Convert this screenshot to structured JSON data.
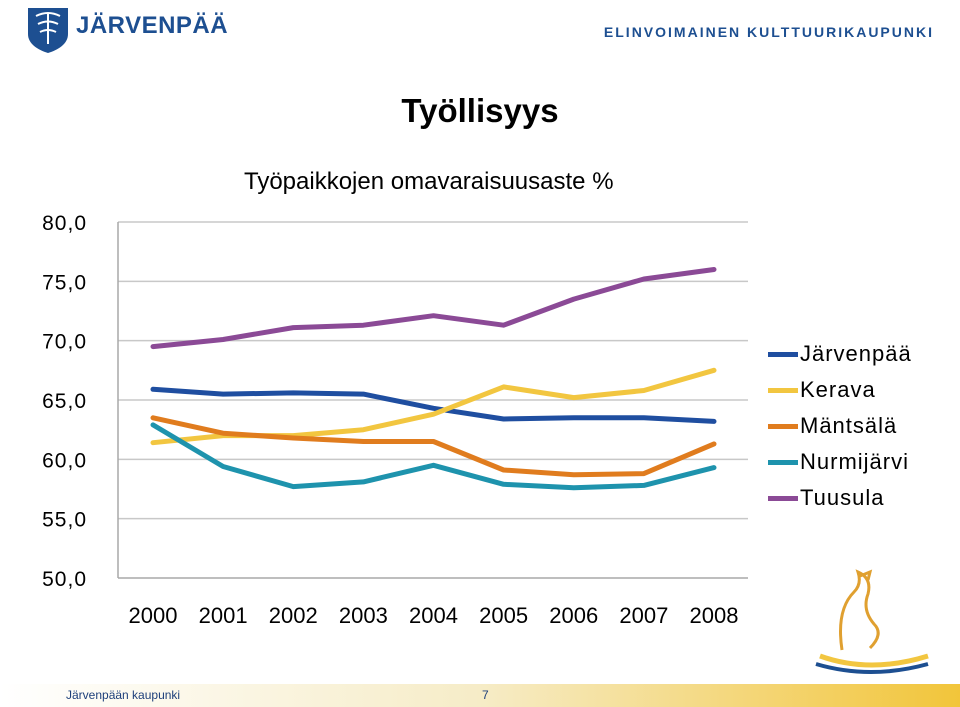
{
  "header": {
    "brand": "JÄRVENPÄÄ",
    "tagline": "ELINVOIMAINEN KULTTUURIKAUPUNKI",
    "brand_color": "#1d4f91",
    "logo_icon": "city-crest-icon"
  },
  "slide": {
    "title": "Työllisyys",
    "footer_org": "Järvenpään kaupunki",
    "page_number": "7",
    "decoration_icon": "goose-icon"
  },
  "chart_data": {
    "type": "line",
    "title": "Työpaikkojen omavaraisuusaste %",
    "xlabel": "",
    "ylabel": "",
    "categories": [
      "2000",
      "2001",
      "2002",
      "2003",
      "2004",
      "2005",
      "2006",
      "2007",
      "2008"
    ],
    "y_ticks": [
      "80,0",
      "75,0",
      "70,0",
      "65,0",
      "60,0",
      "55,0",
      "50,0"
    ],
    "ylim": [
      50,
      80
    ],
    "grid": true,
    "legend_position": "right",
    "series": [
      {
        "name": "Järvenpää",
        "color": "#1f4ea0",
        "values": [
          65.9,
          65.5,
          65.6,
          65.5,
          64.3,
          63.4,
          63.5,
          63.5,
          63.2
        ]
      },
      {
        "name": "Kerava",
        "color": "#f2c640",
        "values": [
          61.4,
          62.0,
          62.0,
          62.5,
          63.8,
          66.1,
          65.2,
          65.8,
          67.5
        ]
      },
      {
        "name": "Mäntsälä",
        "color": "#e07c1e",
        "values": [
          63.5,
          62.2,
          61.8,
          61.5,
          61.5,
          59.1,
          58.7,
          58.8,
          61.3
        ]
      },
      {
        "name": "Nurmijärvi",
        "color": "#1e93ad",
        "values": [
          62.9,
          59.4,
          57.7,
          58.1,
          59.5,
          57.9,
          57.6,
          57.8,
          59.3
        ]
      },
      {
        "name": "Tuusula",
        "color": "#8b4a96",
        "values": [
          69.5,
          70.1,
          71.1,
          71.3,
          72.1,
          71.3,
          73.5,
          75.2,
          76.0
        ]
      }
    ]
  }
}
